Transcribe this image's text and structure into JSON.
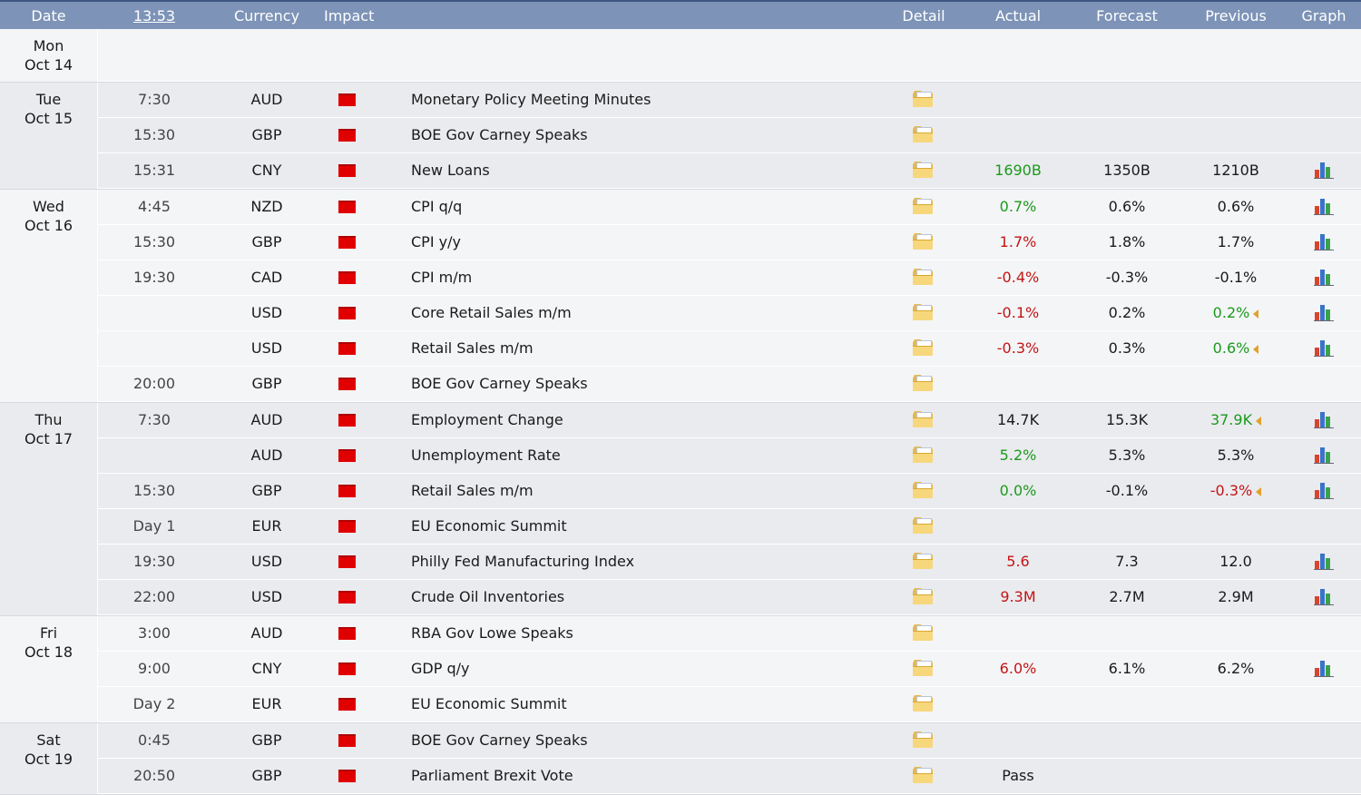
{
  "header": {
    "date": "Date",
    "time": "13:53",
    "currency": "Currency",
    "impact": "Impact",
    "detail": "Detail",
    "actual": "Actual",
    "forecast": "Forecast",
    "previous": "Previous",
    "graph": "Graph"
  },
  "colors": {
    "header_bg": "#7d93b7",
    "impact_high": "#e10000",
    "better": "#1b9a1b",
    "worse": "#c41414"
  },
  "days": [
    {
      "dow": "Mon",
      "date": "Oct 14",
      "events": []
    },
    {
      "dow": "Tue",
      "date": "Oct 15",
      "events": [
        {
          "time": "7:30",
          "currency": "AUD",
          "impact": "high",
          "event": "Monetary Policy Meeting Minutes",
          "actual": "",
          "forecast": "",
          "previous": "",
          "graph": false
        },
        {
          "time": "15:30",
          "currency": "GBP",
          "impact": "high",
          "event": "BOE Gov Carney Speaks",
          "actual": "",
          "forecast": "",
          "previous": "",
          "graph": false
        },
        {
          "time": "15:31",
          "currency": "CNY",
          "impact": "high",
          "event": "New Loans",
          "actual": "1690B",
          "actual_tone": "green",
          "forecast": "1350B",
          "previous": "1210B",
          "graph": true
        }
      ]
    },
    {
      "dow": "Wed",
      "date": "Oct 16",
      "events": [
        {
          "time": "4:45",
          "currency": "NZD",
          "impact": "high",
          "event": "CPI q/q",
          "actual": "0.7%",
          "actual_tone": "green",
          "forecast": "0.6%",
          "previous": "0.6%",
          "graph": true
        },
        {
          "time": "15:30",
          "currency": "GBP",
          "impact": "high",
          "event": "CPI y/y",
          "actual": "1.7%",
          "actual_tone": "red",
          "forecast": "1.8%",
          "previous": "1.7%",
          "graph": true
        },
        {
          "time": "19:30",
          "currency": "CAD",
          "impact": "high",
          "event": "CPI m/m",
          "actual": "-0.4%",
          "actual_tone": "red",
          "forecast": "-0.3%",
          "previous": "-0.1%",
          "graph": true
        },
        {
          "time": "",
          "currency": "USD",
          "impact": "high",
          "event": "Core Retail Sales m/m",
          "actual": "-0.1%",
          "actual_tone": "red",
          "forecast": "0.2%",
          "previous": "0.2%",
          "previous_tone": "green",
          "revised": true,
          "graph": true
        },
        {
          "time": "",
          "currency": "USD",
          "impact": "high",
          "event": "Retail Sales m/m",
          "actual": "-0.3%",
          "actual_tone": "red",
          "forecast": "0.3%",
          "previous": "0.6%",
          "previous_tone": "green",
          "revised": true,
          "graph": true
        },
        {
          "time": "20:00",
          "currency": "GBP",
          "impact": "high",
          "event": "BOE Gov Carney Speaks",
          "actual": "",
          "forecast": "",
          "previous": "",
          "graph": false
        }
      ]
    },
    {
      "dow": "Thu",
      "date": "Oct 17",
      "events": [
        {
          "time": "7:30",
          "currency": "AUD",
          "impact": "high",
          "event": "Employment Change",
          "actual": "14.7K",
          "forecast": "15.3K",
          "previous": "37.9K",
          "previous_tone": "green",
          "revised": true,
          "graph": true
        },
        {
          "time": "",
          "currency": "AUD",
          "impact": "high",
          "event": "Unemployment Rate",
          "actual": "5.2%",
          "actual_tone": "green",
          "forecast": "5.3%",
          "previous": "5.3%",
          "graph": true
        },
        {
          "time": "15:30",
          "currency": "GBP",
          "impact": "high",
          "event": "Retail Sales m/m",
          "actual": "0.0%",
          "actual_tone": "green",
          "forecast": "-0.1%",
          "previous": "-0.3%",
          "previous_tone": "red",
          "revised": true,
          "graph": true
        },
        {
          "time": "Day 1",
          "currency": "EUR",
          "impact": "high",
          "event": "EU Economic Summit",
          "actual": "",
          "forecast": "",
          "previous": "",
          "graph": false
        },
        {
          "time": "19:30",
          "currency": "USD",
          "impact": "high",
          "event": "Philly Fed Manufacturing Index",
          "actual": "5.6",
          "actual_tone": "red",
          "forecast": "7.3",
          "previous": "12.0",
          "graph": true
        },
        {
          "time": "22:00",
          "currency": "USD",
          "impact": "high",
          "event": "Crude Oil Inventories",
          "actual": "9.3M",
          "actual_tone": "red",
          "forecast": "2.7M",
          "previous": "2.9M",
          "graph": true
        }
      ]
    },
    {
      "dow": "Fri",
      "date": "Oct 18",
      "events": [
        {
          "time": "3:00",
          "currency": "AUD",
          "impact": "high",
          "event": "RBA Gov Lowe Speaks",
          "actual": "",
          "forecast": "",
          "previous": "",
          "graph": false
        },
        {
          "time": "9:00",
          "currency": "CNY",
          "impact": "high",
          "event": "GDP q/y",
          "actual": "6.0%",
          "actual_tone": "red",
          "forecast": "6.1%",
          "previous": "6.2%",
          "graph": true
        },
        {
          "time": "Day 2",
          "currency": "EUR",
          "impact": "high",
          "event": "EU Economic Summit",
          "actual": "",
          "forecast": "",
          "previous": "",
          "graph": false
        }
      ]
    },
    {
      "dow": "Sat",
      "date": "Oct 19",
      "events": [
        {
          "time": "0:45",
          "currency": "GBP",
          "impact": "high",
          "event": "BOE Gov Carney Speaks",
          "actual": "",
          "forecast": "",
          "previous": "",
          "graph": false
        },
        {
          "time": "20:50",
          "currency": "GBP",
          "impact": "high",
          "event": "Parliament Brexit Vote",
          "actual": "Pass",
          "forecast": "",
          "previous": "",
          "graph": false
        }
      ]
    }
  ]
}
